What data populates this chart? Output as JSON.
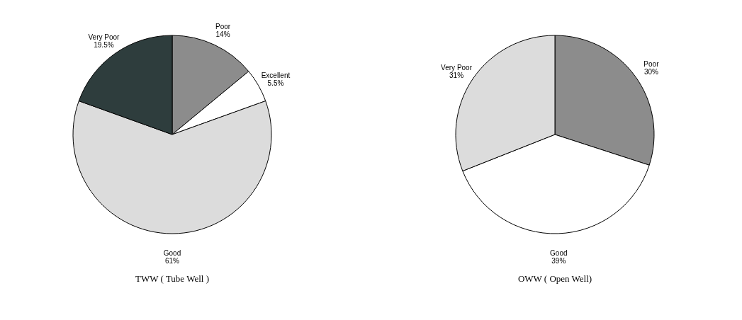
{
  "chart_data": [
    {
      "type": "pie",
      "title": "TWW ( Tube Well )",
      "categories": [
        "Poor",
        "Excellent",
        "Good",
        "Very Poor"
      ],
      "values": [
        14,
        5.5,
        61,
        19.5
      ],
      "value_labels": [
        "14%",
        "5.5%",
        "61%",
        "19.5%"
      ],
      "colors": [
        "#8c8c8c",
        "#ffffff",
        "#dcdcdc",
        "#2e3d3d"
      ],
      "legend": false
    },
    {
      "type": "pie",
      "title": "OWW ( Open Well)",
      "categories": [
        "Poor",
        "Good",
        "Very Poor"
      ],
      "values": [
        30,
        39,
        31
      ],
      "value_labels": [
        "30%",
        "39%",
        "31%"
      ],
      "colors": [
        "#8c8c8c",
        "#ffffff",
        "#d2d2d2"
      ],
      "legend": false
    }
  ]
}
